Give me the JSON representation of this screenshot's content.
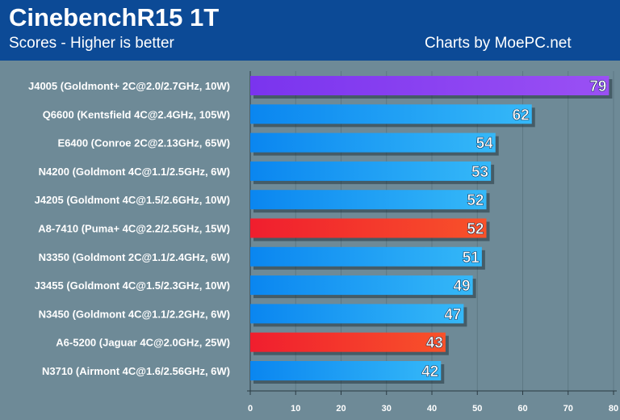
{
  "header": {
    "title": "CinebenchR15 1T",
    "subtitle": "Scores - Higher is better",
    "credit": "Charts by MoePC.net"
  },
  "colors": {
    "header_bg": "#0c4a96",
    "plot_bg": "#6e8a97",
    "purple_bar": "#8a3cf0",
    "blue_bar": "#1a9af0",
    "red_bar": "#f02a2a"
  },
  "chart_data": {
    "type": "bar",
    "orientation": "horizontal",
    "title": "CinebenchR15 1T",
    "subtitle": "Scores - Higher is better",
    "xlabel": "",
    "ylabel": "",
    "xlim": [
      0,
      80
    ],
    "xticks": [
      0,
      10,
      20,
      30,
      40,
      50,
      60,
      70,
      80
    ],
    "grid": true,
    "legend": "none",
    "categories": [
      "J4005 (Goldmont+ 2C@2.0/2.7GHz, 10W)",
      "Q6600 (Kentsfield 4C@2.4GHz, 105W)",
      "E6400 (Conroe 2C@2.13GHz, 65W)",
      "N4200 (Goldmont 4C@1.1/2.5GHz, 6W)",
      "J4205 (Goldmont 4C@1.5/2.6GHz, 10W)",
      "A8-7410 (Puma+ 4C@2.2/2.5GHz, 15W)",
      "N3350 (Goldmont 2C@1.1/2.4GHz, 6W)",
      "J3455 (Goldmont 4C@1.5/2.3GHz, 10W)",
      "N3450 (Goldmont 4C@1.1/2.2GHz, 6W)",
      "A6-5200 (Jaguar 4C@2.0GHz, 25W)",
      "N3710 (Airmont 4C@1.6/2.56GHz, 6W)"
    ],
    "values": [
      79,
      62,
      54,
      53,
      52,
      52,
      51,
      49,
      47,
      43,
      42
    ],
    "bar_colors": [
      "purple",
      "blue",
      "blue",
      "blue",
      "blue",
      "red",
      "blue",
      "blue",
      "blue",
      "red",
      "blue"
    ]
  }
}
